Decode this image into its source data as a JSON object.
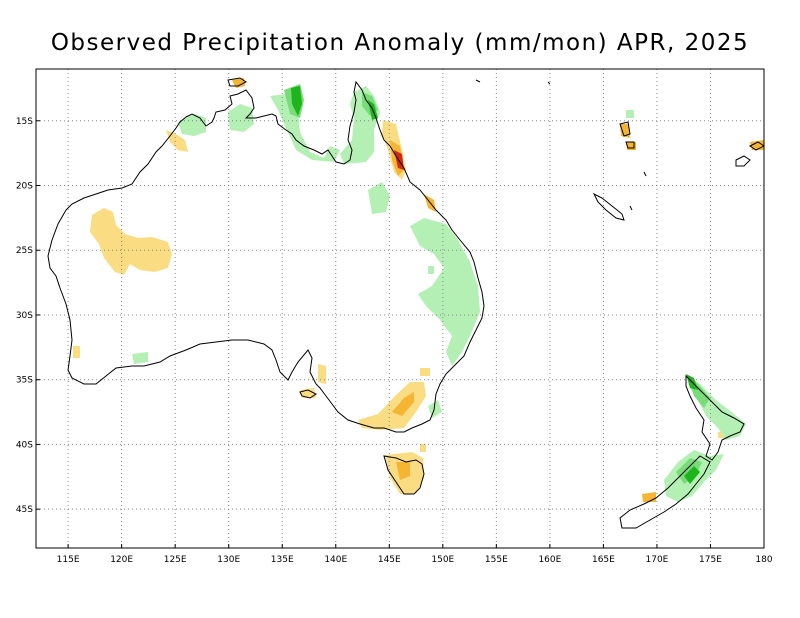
{
  "title": "Observed Precipitation Anomaly (mm/mon) APR, 2025",
  "map": {
    "lon_range": [
      112,
      180
    ],
    "lat_range": [
      -48,
      -11
    ],
    "lon_ticks": [
      {
        "value": 115,
        "label": "115E"
      },
      {
        "value": 120,
        "label": "120E"
      },
      {
        "value": 125,
        "label": "125E"
      },
      {
        "value": 130,
        "label": "130E"
      },
      {
        "value": 135,
        "label": "135E"
      },
      {
        "value": 140,
        "label": "140E"
      },
      {
        "value": 145,
        "label": "145E"
      },
      {
        "value": 150,
        "label": "150E"
      },
      {
        "value": 155,
        "label": "155E"
      },
      {
        "value": 160,
        "label": "160E"
      },
      {
        "value": 165,
        "label": "165E"
      },
      {
        "value": 170,
        "label": "170E"
      },
      {
        "value": 175,
        "label": "175E"
      },
      {
        "value": 180,
        "label": "180"
      }
    ],
    "lat_ticks": [
      {
        "value": -15,
        "label": "15S"
      },
      {
        "value": -20,
        "label": "20S"
      },
      {
        "value": -25,
        "label": "25S"
      },
      {
        "value": -30,
        "label": "30S"
      },
      {
        "value": -35,
        "label": "35S"
      },
      {
        "value": -40,
        "label": "40S"
      },
      {
        "value": -45,
        "label": "45S"
      }
    ],
    "grid": "dotted",
    "colors": {
      "wet_light": "#b4f0b4",
      "wet_medium": "#78dc78",
      "wet_strong": "#1eb41e",
      "dry_light": "#fadc82",
      "dry_medium": "#f5b432",
      "dry_strong": "#e66e14",
      "dry_extreme": "#d22814",
      "coastline": "#000000"
    }
  }
}
